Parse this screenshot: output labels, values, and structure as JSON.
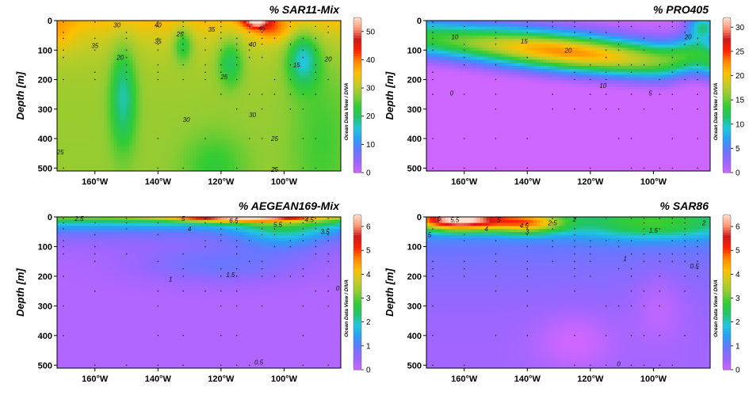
{
  "watermark": "Ocean Data View / DIVA",
  "colormap": [
    "#cc66ff",
    "#9966ff",
    "#6677ff",
    "#2a9df4",
    "#22c7e0",
    "#22c46a",
    "#33cc33",
    "#8fcc33",
    "#c8cc22",
    "#ffbf00",
    "#ff8800",
    "#ff2200",
    "#cc1a1a",
    "#ff9977",
    "#ffe0d0"
  ],
  "chart_data": [
    {
      "type": "heatmap",
      "title": "% SAR11-Mix",
      "ylabel": "Depth [m]",
      "x_ticks": [
        "160°W",
        "140°W",
        "120°W",
        "100°W"
      ],
      "x_tick_values": [
        -160,
        -140,
        -120,
        -100
      ],
      "y_ticks": [
        "0",
        "100",
        "200",
        "300",
        "400",
        "500"
      ],
      "y_tick_values": [
        0,
        100,
        200,
        300,
        400,
        500
      ],
      "xlim": [
        -172,
        -82
      ],
      "ylim": [
        0,
        510
      ],
      "colorbar_ticks": [
        "0",
        "10",
        "20",
        "30",
        "40",
        "50"
      ],
      "colorbar_tick_values": [
        0,
        10,
        20,
        30,
        40,
        50
      ],
      "colorbar_range": [
        0,
        55
      ],
      "contour_labels": [
        {
          "text": "30",
          "x": -153,
          "y": 15
        },
        {
          "text": "40",
          "x": -140,
          "y": 15
        },
        {
          "text": "35",
          "x": -160,
          "y": 85
        },
        {
          "text": "35",
          "x": -140,
          "y": 70
        },
        {
          "text": "25",
          "x": -133,
          "y": 45
        },
        {
          "text": "35",
          "x": -123,
          "y": 30
        },
        {
          "text": "45",
          "x": -107,
          "y": 25
        },
        {
          "text": "40",
          "x": -110,
          "y": 80
        },
        {
          "text": "20",
          "x": -152,
          "y": 125
        },
        {
          "text": "25",
          "x": -119,
          "y": 190
        },
        {
          "text": "30",
          "x": -131,
          "y": 335
        },
        {
          "text": "30",
          "x": -110,
          "y": 320
        },
        {
          "text": "15",
          "x": -96,
          "y": 150
        },
        {
          "text": "25",
          "x": -103,
          "y": 400
        },
        {
          "text": "25",
          "x": -171,
          "y": 445
        },
        {
          "text": "25",
          "x": -103,
          "y": 505
        },
        {
          "text": "20",
          "x": -86,
          "y": 130
        }
      ]
    },
    {
      "type": "heatmap",
      "title": "% PRO405",
      "ylabel": "Depth [m]",
      "x_ticks": [
        "160°W",
        "140°W",
        "120°W",
        "100°W"
      ],
      "x_tick_values": [
        -160,
        -140,
        -120,
        -100
      ],
      "y_ticks": [
        "0",
        "100",
        "200",
        "300",
        "400",
        "500"
      ],
      "y_tick_values": [
        0,
        100,
        200,
        300,
        400,
        500
      ],
      "xlim": [
        -172,
        -82
      ],
      "ylim": [
        0,
        510
      ],
      "colorbar_ticks": [
        "0",
        "5",
        "10",
        "15",
        "20",
        "25",
        "30"
      ],
      "colorbar_tick_values": [
        0,
        5,
        10,
        15,
        20,
        25,
        30
      ],
      "colorbar_range": [
        0,
        32
      ],
      "contour_labels": [
        {
          "text": "10",
          "x": -163,
          "y": 55
        },
        {
          "text": "15",
          "x": -141,
          "y": 70
        },
        {
          "text": "20",
          "x": -127,
          "y": 100
        },
        {
          "text": "20",
          "x": -89,
          "y": 55
        },
        {
          "text": "10",
          "x": -116,
          "y": 220
        },
        {
          "text": "5",
          "x": -101,
          "y": 245
        },
        {
          "text": "0",
          "x": -164,
          "y": 245
        }
      ]
    },
    {
      "type": "heatmap",
      "title": "% AEGEAN169-Mix",
      "ylabel": "Depth [m]",
      "x_ticks": [
        "160°W",
        "140°W",
        "120°W",
        "100°W"
      ],
      "x_tick_values": [
        -160,
        -140,
        -120,
        -100
      ],
      "y_ticks": [
        "0",
        "100",
        "200",
        "300",
        "400",
        "500"
      ],
      "y_tick_values": [
        0,
        100,
        200,
        300,
        400,
        500
      ],
      "xlim": [
        -172,
        -82
      ],
      "ylim": [
        0,
        510
      ],
      "colorbar_ticks": [
        "0",
        "1",
        "2",
        "3",
        "4",
        "5",
        "6"
      ],
      "colorbar_tick_values": [
        0,
        1,
        2,
        3,
        4,
        5,
        6
      ],
      "colorbar_range": [
        0,
        6.5
      ],
      "contour_labels": [
        {
          "text": "2.5",
          "x": -165,
          "y": 5
        },
        {
          "text": "5",
          "x": -132,
          "y": 5
        },
        {
          "text": "6.5",
          "x": -116,
          "y": 12
        },
        {
          "text": "5.5",
          "x": -102,
          "y": 25
        },
        {
          "text": "4.5",
          "x": -92,
          "y": 10
        },
        {
          "text": "4",
          "x": -130,
          "y": 40
        },
        {
          "text": "3.5",
          "x": -87,
          "y": 50
        },
        {
          "text": "1.5",
          "x": -117,
          "y": 195
        },
        {
          "text": "1",
          "x": -136,
          "y": 210
        },
        {
          "text": "0",
          "x": -83,
          "y": 240
        },
        {
          "text": "0.5",
          "x": -108,
          "y": 490
        }
      ]
    },
    {
      "type": "heatmap",
      "title": "% SAR86",
      "ylabel": "Depth [m]",
      "x_ticks": [
        "160°W",
        "140°W",
        "120°W",
        "100°W"
      ],
      "x_tick_values": [
        -160,
        -140,
        -120,
        -100
      ],
      "y_ticks": [
        "0",
        "100",
        "200",
        "300",
        "400",
        "500"
      ],
      "y_tick_values": [
        0,
        100,
        200,
        300,
        400,
        500
      ],
      "xlim": [
        -172,
        -82
      ],
      "ylim": [
        0,
        510
      ],
      "colorbar_ticks": [
        "0",
        "1",
        "2",
        "3",
        "4",
        "5",
        "6"
      ],
      "colorbar_tick_values": [
        0,
        1,
        2,
        3,
        4,
        5,
        6
      ],
      "colorbar_range": [
        0,
        6.5
      ],
      "contour_labels": [
        {
          "text": "6",
          "x": -168,
          "y": 5
        },
        {
          "text": "5.5",
          "x": -163,
          "y": 10
        },
        {
          "text": "5",
          "x": -149,
          "y": 10
        },
        {
          "text": "4.5",
          "x": -141,
          "y": 30
        },
        {
          "text": "2.5",
          "x": -132,
          "y": 20
        },
        {
          "text": "2",
          "x": -125,
          "y": 8
        },
        {
          "text": "4",
          "x": -153,
          "y": 40
        },
        {
          "text": "3",
          "x": -140,
          "y": 50
        },
        {
          "text": "1.5",
          "x": -100,
          "y": 45
        },
        {
          "text": "2",
          "x": -84,
          "y": 20
        },
        {
          "text": "5",
          "x": -171,
          "y": 60
        },
        {
          "text": "1",
          "x": -109,
          "y": 140
        },
        {
          "text": "0.5",
          "x": -87,
          "y": 165
        },
        {
          "text": "0",
          "x": -111,
          "y": 495
        }
      ]
    }
  ]
}
